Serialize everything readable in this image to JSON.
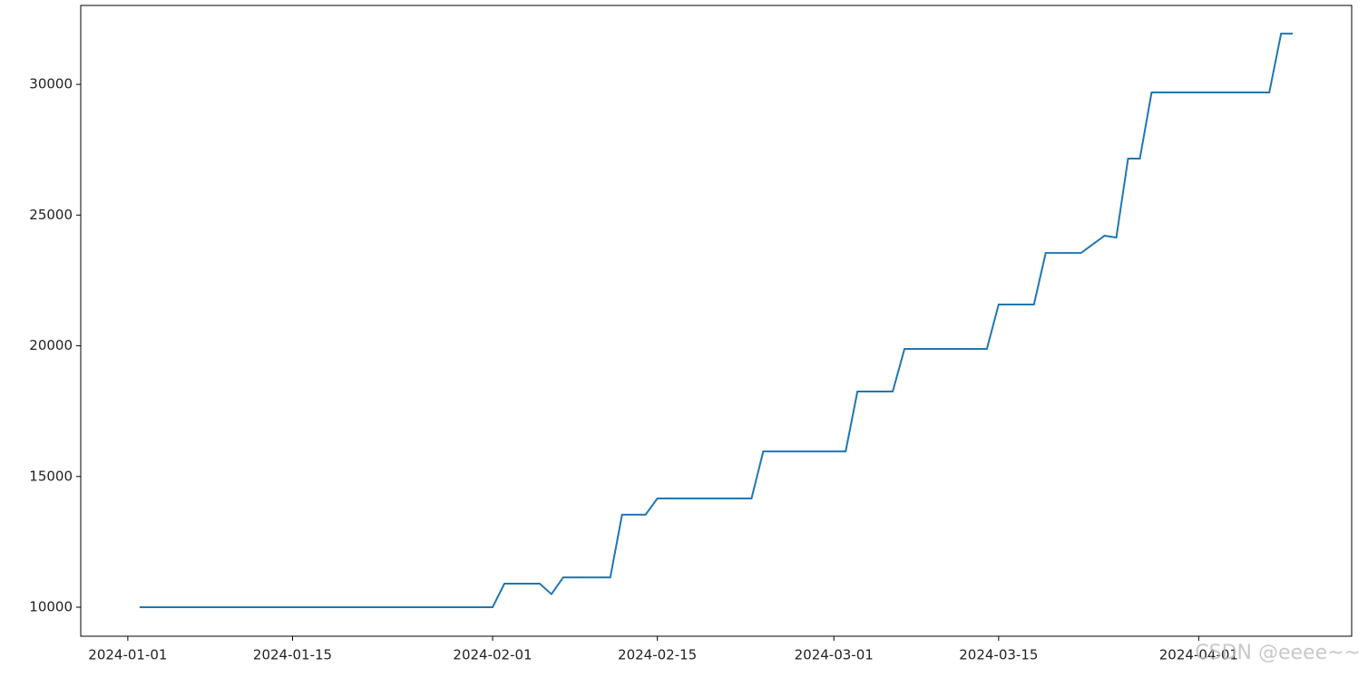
{
  "chart_data": {
    "type": "line",
    "x": [
      "2024-01-02",
      "2024-02-01",
      "2024-02-02",
      "2024-02-05",
      "2024-02-06",
      "2024-02-07",
      "2024-02-11",
      "2024-02-12",
      "2024-02-14",
      "2024-02-15",
      "2024-02-23",
      "2024-02-24",
      "2024-03-02",
      "2024-03-03",
      "2024-03-06",
      "2024-03-07",
      "2024-03-14",
      "2024-03-15",
      "2024-03-18",
      "2024-03-19",
      "2024-03-22",
      "2024-03-24",
      "2024-03-25",
      "2024-03-26",
      "2024-03-27",
      "2024-03-28",
      "2024-04-07",
      "2024-04-08",
      "2024-04-09"
    ],
    "values": [
      10000,
      10000,
      10900,
      10900,
      10500,
      11140,
      11140,
      13540,
      13540,
      14160,
      14160,
      15960,
      15960,
      18250,
      18250,
      19880,
      19880,
      21580,
      21580,
      23550,
      23550,
      24210,
      24140,
      27160,
      27160,
      29690,
      29690,
      31940,
      31940
    ],
    "color": "#1f77b4",
    "xlim": [
      "2023-12-28",
      "2024-04-14"
    ],
    "xticks": [
      "2024-01-01",
      "2024-01-15",
      "2024-02-01",
      "2024-02-15",
      "2024-03-01",
      "2024-03-15",
      "2024-04-01"
    ],
    "ylim": [
      8890,
      33020
    ],
    "yticks": [
      10000,
      15000,
      20000,
      25000,
      30000
    ],
    "grid": false,
    "watermark": "CSDN @eeee~~"
  }
}
